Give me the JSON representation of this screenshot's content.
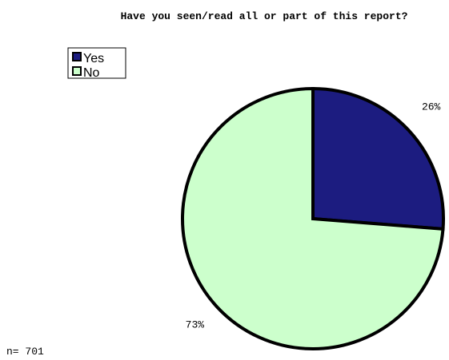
{
  "chart_data": {
    "type": "pie",
    "title": "Have you seen/read all or part of this report?",
    "categories": [
      "Yes",
      "No"
    ],
    "values": [
      26,
      73
    ],
    "value_labels": [
      "26%",
      "73%"
    ],
    "colors": [
      "#1c1c80",
      "#ccffcc"
    ],
    "annotation": "n= 701",
    "legend": "top-left"
  }
}
